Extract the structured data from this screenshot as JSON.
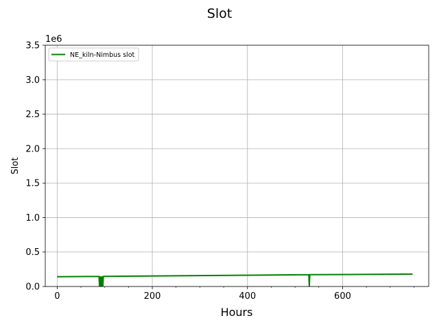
{
  "chart_data": {
    "type": "line",
    "title": "Slot",
    "xlabel": "Hours",
    "ylabel": "Slot",
    "y_offset_label": "1e6",
    "xlim": [
      -25,
      781
    ],
    "ylim": [
      0,
      3.5
    ],
    "x_ticks": [
      0,
      200,
      400,
      600
    ],
    "x_tick_labels": [
      "0",
      "200",
      "400",
      "600"
    ],
    "y_ticks": [
      0,
      0.5,
      1.0,
      1.5,
      2.0,
      2.5,
      3.0,
      3.5
    ],
    "y_tick_labels": [
      "0.0",
      "0.5",
      "1.0",
      "1.5",
      "2.0",
      "2.5",
      "3.0",
      "3.5"
    ],
    "grid": true,
    "legend_position": "top-left",
    "series": [
      {
        "name": "NE_kiln-Nimbus slot",
        "color": "#008000",
        "points": [
          [
            0,
            0.142
          ],
          [
            88,
            0.146
          ],
          [
            89,
            0.0
          ],
          [
            90,
            0.147
          ],
          [
            91,
            0.0
          ],
          [
            92,
            0.147
          ],
          [
            94,
            0.0
          ],
          [
            95,
            0.147
          ],
          [
            96,
            0.0
          ],
          [
            97,
            0.147
          ],
          [
            529,
            0.171
          ],
          [
            530,
            0.0
          ],
          [
            531,
            0.171
          ],
          [
            747,
            0.18
          ]
        ]
      }
    ]
  }
}
